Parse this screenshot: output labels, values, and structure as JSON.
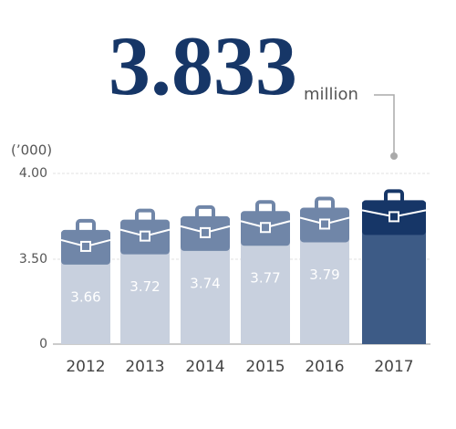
{
  "chart_data": {
    "type": "bar",
    "headline_unit": "million",
    "y_axis_label": "(’000)",
    "categories": [
      "2012",
      "2013",
      "2014",
      "2015",
      "2016",
      "2017"
    ],
    "values": [
      3.66,
      3.72,
      3.74,
      3.77,
      3.79,
      3.833
    ],
    "yticks": [
      0,
      {
        "value": 3.5,
        "label": "3.50"
      },
      {
        "value": 4,
        "label": "4.00"
      }
    ],
    "ylim": [
      0,
      4
    ],
    "broken_axis": true,
    "grid": true,
    "color": "#c8d0de",
    "case_color": "#7086a8",
    "highlight": "2017",
    "highlight_color": "#3d5b86",
    "highlight_case_color": "#163667"
  }
}
